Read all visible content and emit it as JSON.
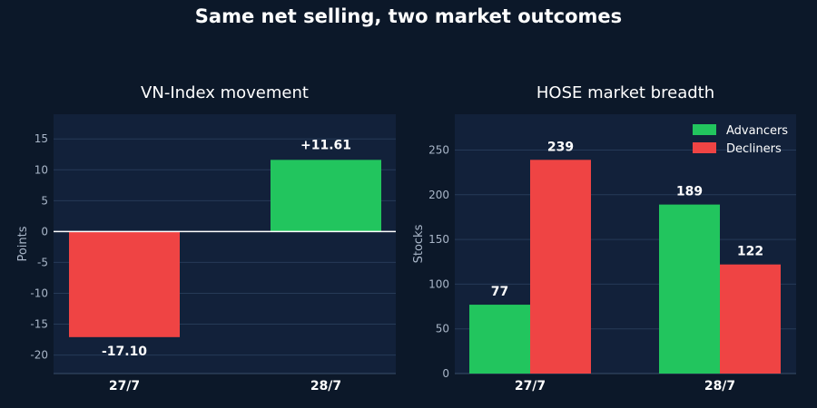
{
  "title": "Same net selling, two market outcomes",
  "colors": {
    "background": "#0c1829",
    "plot_background": "#12213a",
    "gridline": "#263a57",
    "positive": "#22c55e",
    "negative": "#ef4444",
    "zero_line": "#ffffff",
    "tick_text": "#a9b6c8"
  },
  "chart_data": [
    {
      "type": "bar",
      "title": "VN-Index movement",
      "xlabel": "",
      "ylabel": "Points",
      "categories": [
        "27/7",
        "28/7"
      ],
      "values": [
        -17.1,
        11.61
      ],
      "data_labels": [
        "-17.10",
        "+11.61"
      ],
      "ylim": [
        -23,
        19
      ],
      "yticks": [
        -20,
        -15,
        -10,
        -5,
        0,
        5,
        10,
        15
      ],
      "grid": true,
      "legend": false
    },
    {
      "type": "bar",
      "title": "HOSE market breadth",
      "xlabel": "",
      "ylabel": "Stocks",
      "categories": [
        "27/7",
        "28/7"
      ],
      "series": [
        {
          "name": "Advancers",
          "values": [
            77,
            189
          ],
          "data_labels": [
            "77",
            "189"
          ]
        },
        {
          "name": "Decliners",
          "values": [
            239,
            122
          ],
          "data_labels": [
            "239",
            "122"
          ]
        }
      ],
      "ylim": [
        0,
        290
      ],
      "yticks": [
        0,
        50,
        100,
        150,
        200,
        250
      ],
      "grid": true,
      "legend": "top-right"
    }
  ]
}
